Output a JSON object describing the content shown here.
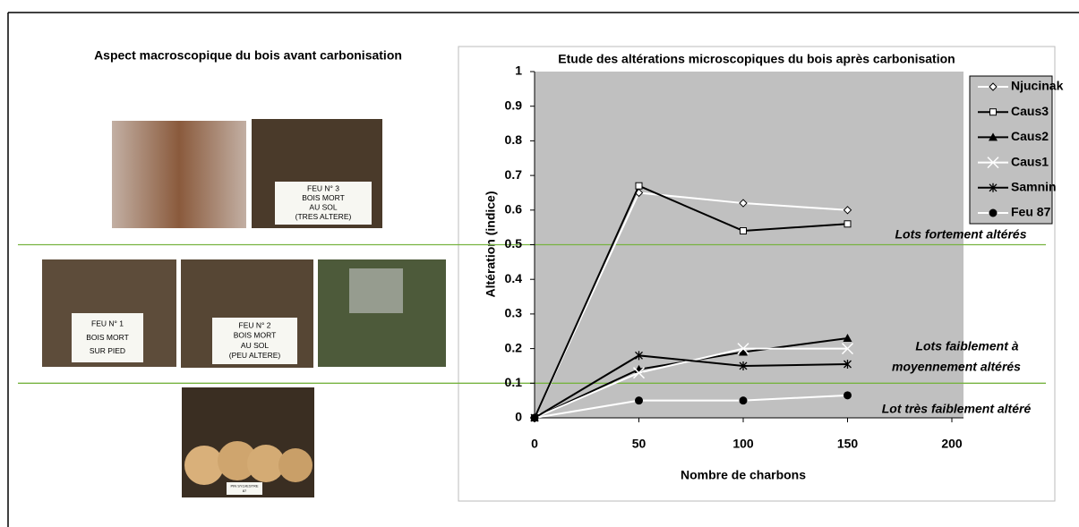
{
  "left_title": "Aspect macroscopique du bois avant carbonisation",
  "photo_signs": [
    [
      "FEU N° 3",
      "BOIS MORT",
      "AU SOL",
      "(TRES ALTERE)"
    ],
    [
      "FEU N° 1",
      "BOIS MORT",
      "SUR PIED"
    ],
    [
      "FEU N° 2",
      "BOIS MORT",
      "AU SOL",
      "(PEU ALTERE)"
    ],
    [
      "PIN SYLVESTRE",
      "87"
    ]
  ],
  "chart_data": {
    "type": "line",
    "title": "Etude des altérations microscopiques du  bois après carbonisation",
    "x_label": "Nombre de charbons",
    "y_label": "Altération (indice)",
    "x": [
      0,
      50,
      100,
      150
    ],
    "xlim": [
      0,
      200
    ],
    "xticks": [
      0,
      50,
      100,
      150,
      200
    ],
    "ylim": [
      0,
      1
    ],
    "yticks": [
      0,
      0.1,
      0.2,
      0.3,
      0.4,
      0.5,
      0.6,
      0.7,
      0.8,
      0.9,
      1
    ],
    "plot_background": "#c0c0c0",
    "threshold_lines": [
      0.5,
      0.1
    ],
    "threshold_color": "#77b340",
    "series": [
      {
        "name": "Njucinak",
        "color": "#ffffff",
        "marker": "diamond",
        "values": [
          0,
          0.65,
          0.62,
          0.6
        ]
      },
      {
        "name": "Caus3",
        "color": "#000000",
        "marker": "square",
        "values": [
          0,
          0.67,
          0.54,
          0.56
        ]
      },
      {
        "name": "Caus2",
        "color": "#000000",
        "marker": "triangle",
        "values": [
          0,
          0.14,
          0.19,
          0.23
        ]
      },
      {
        "name": "Caus1",
        "color": "#ffffff",
        "marker": "x",
        "values": [
          0,
          0.13,
          0.2,
          0.2
        ]
      },
      {
        "name": "Samnin",
        "color": "#000000",
        "marker": "star",
        "values": [
          0,
          0.18,
          0.15,
          0.155
        ]
      },
      {
        "name": "Feu 87",
        "color": "#ffffff",
        "marker": "circle",
        "values": [
          0,
          0.05,
          0.05,
          0.065
        ]
      }
    ],
    "annotations": [
      "Lots fortement altérés",
      "Lots faiblement à",
      "moyennement altérés",
      "Lot très faiblement altéré"
    ]
  }
}
